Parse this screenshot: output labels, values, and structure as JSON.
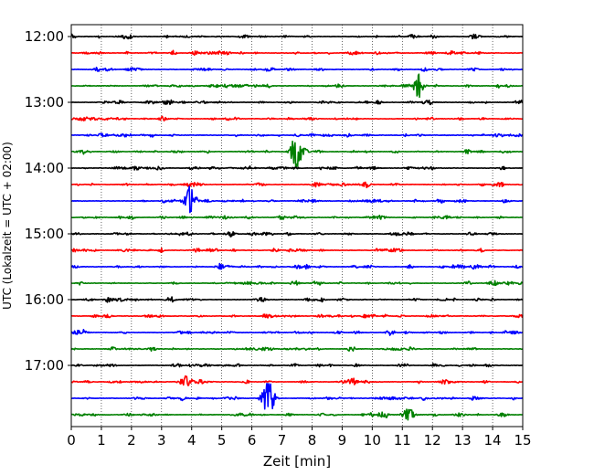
{
  "chart_data": {
    "type": "line",
    "title": "",
    "xlabel": "Zeit  [min]",
    "ylabel": "UTC (Lokalzeit = UTC + 02:00)",
    "xlim": [
      0,
      15
    ],
    "x_ticks": [
      "0",
      "1",
      "2",
      "3",
      "4",
      "5",
      "6",
      "7",
      "8",
      "9",
      "10",
      "11",
      "12",
      "13",
      "14",
      "15"
    ],
    "y_ticks": [
      "12:00",
      "13:00",
      "14:00",
      "15:00",
      "16:00",
      "17:00"
    ],
    "grid": {
      "x": "dotted",
      "y": "off"
    },
    "legend": "none",
    "trace_interval_minutes": 15,
    "start_time": "12:00",
    "trace_colors": [
      "#000000",
      "#ff0000",
      "#0000ff",
      "#008000"
    ],
    "series": [
      {
        "start": "12:00",
        "color": "#000000",
        "events": []
      },
      {
        "start": "12:15",
        "color": "#ff0000",
        "events": []
      },
      {
        "start": "12:30",
        "color": "#0000ff",
        "events": []
      },
      {
        "start": "12:45",
        "color": "#008000",
        "events": [
          {
            "t": 11.5,
            "amp": 0.6
          }
        ]
      },
      {
        "start": "13:00",
        "color": "#000000",
        "events": []
      },
      {
        "start": "13:15",
        "color": "#ff0000",
        "events": []
      },
      {
        "start": "13:30",
        "color": "#0000ff",
        "events": []
      },
      {
        "start": "13:45",
        "color": "#008000",
        "events": [
          {
            "t": 7.5,
            "amp": 1.0
          }
        ]
      },
      {
        "start": "14:00",
        "color": "#000000",
        "events": []
      },
      {
        "start": "14:15",
        "color": "#ff0000",
        "events": []
      },
      {
        "start": "14:30",
        "color": "#0000ff",
        "events": [
          {
            "t": 3.95,
            "amp": 0.8
          }
        ]
      },
      {
        "start": "14:45",
        "color": "#008000",
        "events": []
      },
      {
        "start": "15:00",
        "color": "#000000",
        "events": []
      },
      {
        "start": "15:15",
        "color": "#ff0000",
        "events": []
      },
      {
        "start": "15:30",
        "color": "#0000ff",
        "events": []
      },
      {
        "start": "15:45",
        "color": "#008000",
        "events": []
      },
      {
        "start": "16:00",
        "color": "#000000",
        "events": []
      },
      {
        "start": "16:15",
        "color": "#ff0000",
        "events": []
      },
      {
        "start": "16:30",
        "color": "#0000ff",
        "events": []
      },
      {
        "start": "16:45",
        "color": "#008000",
        "events": []
      },
      {
        "start": "17:00",
        "color": "#000000",
        "events": []
      },
      {
        "start": "17:15",
        "color": "#ff0000",
        "events": [
          {
            "t": 3.8,
            "amp": 0.3
          }
        ]
      },
      {
        "start": "17:30",
        "color": "#0000ff",
        "events": [
          {
            "t": 6.55,
            "amp": 1.0
          }
        ]
      },
      {
        "start": "17:45",
        "color": "#008000",
        "events": [
          {
            "t": 11.2,
            "amp": 0.3
          }
        ]
      }
    ]
  }
}
